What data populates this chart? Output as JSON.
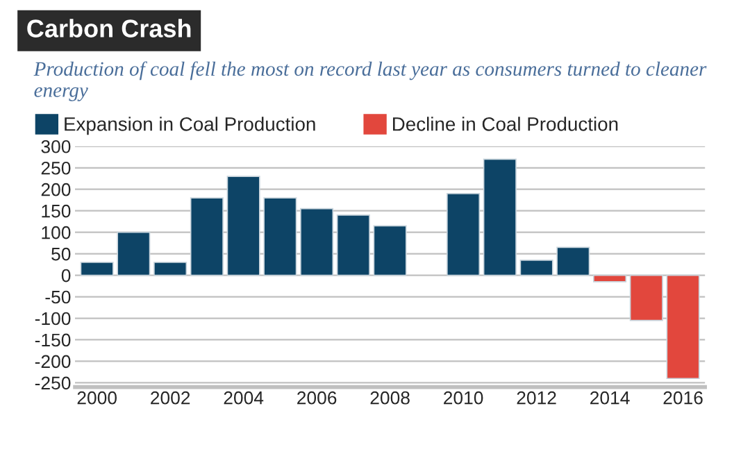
{
  "chart_data": {
    "type": "bar",
    "title": "Carbon Crash",
    "subtitle": "Production of coal fell the most on record last year as consumers turned to cleaner energy",
    "categories": [
      "2000",
      null,
      "2002",
      null,
      "2004",
      null,
      "2006",
      null,
      "2008",
      null,
      "2010",
      null,
      "2012",
      null,
      "2014",
      null,
      "2016"
    ],
    "series": [
      {
        "name": "Expansion in Coal Production",
        "color": "#0d4466",
        "values": [
          30,
          100,
          30,
          180,
          230,
          180,
          155,
          140,
          115,
          null,
          190,
          270,
          35,
          65,
          null,
          null,
          null
        ]
      },
      {
        "name": "Decline in Coal Production",
        "color": "#e2473d",
        "values": [
          null,
          null,
          null,
          null,
          null,
          null,
          null,
          null,
          null,
          null,
          null,
          null,
          null,
          null,
          -15,
          -105,
          -240
        ]
      }
    ],
    "ylim": [
      -260,
      300
    ],
    "yticks": [
      -250,
      -200,
      -150,
      -100,
      -50,
      0,
      50,
      100,
      150,
      200,
      250,
      300
    ],
    "grid": "y",
    "legend": "top left"
  }
}
